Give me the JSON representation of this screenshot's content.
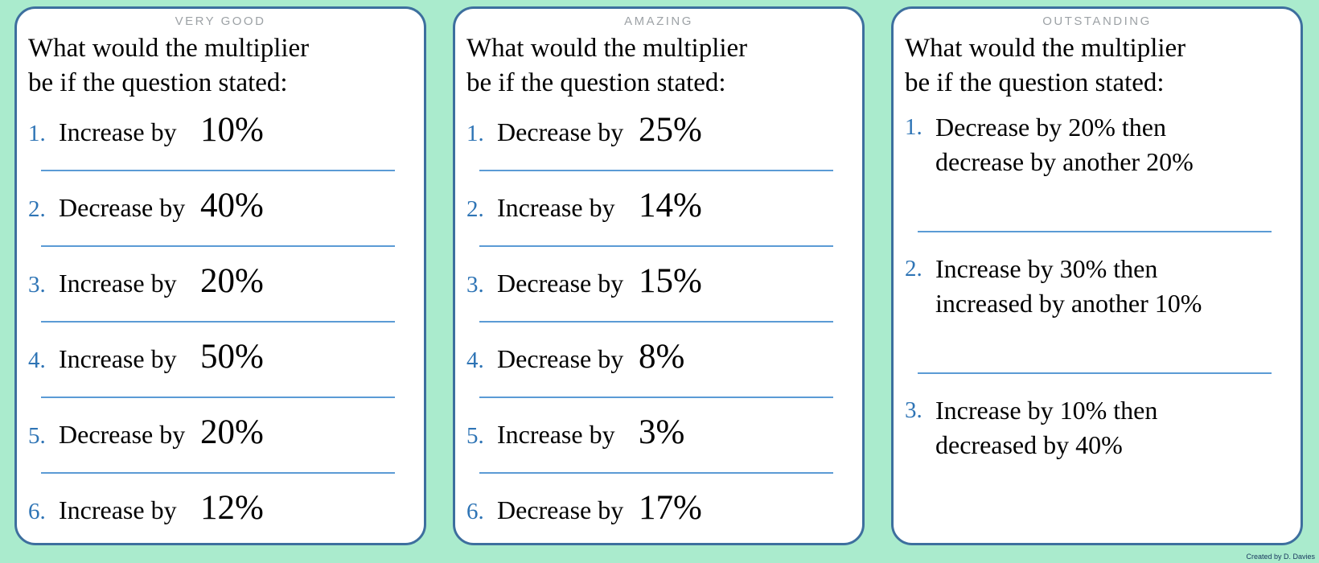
{
  "colors": {
    "page_background": "#AAEBCD",
    "card_background": "#FFFFFF",
    "card_border": "#3D6F9E",
    "label_gray": "#9DA2A6",
    "number_blue": "#2E74B5",
    "separator_blue": "#5B9BD5",
    "body_text": "#000000",
    "credit_text": "#17365D"
  },
  "credit": "Created by D. Davies",
  "cards": [
    {
      "label": "VERY GOOD",
      "heading": {
        "line1": "What would the multiplier",
        "line2": "be if the question stated:"
      },
      "items": [
        {
          "num": "1.",
          "text": "Increase by",
          "value": "10%"
        },
        {
          "num": "2.",
          "text": "Decrease by",
          "value": "40%"
        },
        {
          "num": "3.",
          "text": "Increase by",
          "value": "20%"
        },
        {
          "num": "4.",
          "text": "Increase by",
          "value": "50%"
        },
        {
          "num": "5.",
          "text": "Decrease by",
          "value": "20%"
        },
        {
          "num": "6.",
          "text": "Increase by",
          "value": "12%"
        }
      ]
    },
    {
      "label": "AMAZING",
      "heading": {
        "line1": "What would the multiplier",
        "line2": "be if the question stated:"
      },
      "items": [
        {
          "num": "1.",
          "text": "Decrease by",
          "value": "25%"
        },
        {
          "num": "2.",
          "text": "Increase by",
          "value": "14%"
        },
        {
          "num": "3.",
          "text": "Decrease by",
          "value": "15%"
        },
        {
          "num": "4.",
          "text": "Decrease by",
          "value": "8%"
        },
        {
          "num": "5.",
          "text": "Increase by",
          "value": "3%"
        },
        {
          "num": "6.",
          "text": "Decrease by",
          "value": "17%"
        }
      ]
    },
    {
      "label": "OUTSTANDING",
      "heading": {
        "line1": "What would the multiplier",
        "line2": "be if the question stated:"
      },
      "items": [
        {
          "num": "1.",
          "line1": "Decrease by 20% then",
          "line2": "decrease by another 20%"
        },
        {
          "num": "2.",
          "line1": "Increase by 30% then",
          "line2": "increased by another 10%"
        },
        {
          "num": "3.",
          "line1": "Increase by 10% then",
          "line2": "decreased by 40%"
        }
      ]
    }
  ]
}
